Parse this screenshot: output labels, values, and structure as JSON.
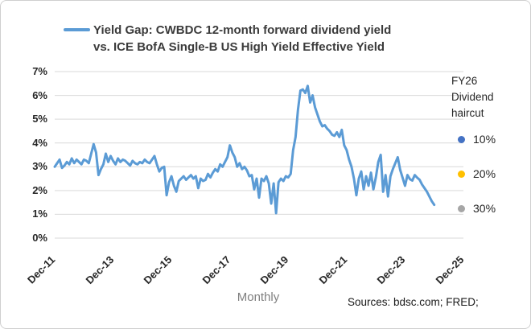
{
  "header": {
    "series_marker_color": "#5B9BD5",
    "title_line1": "Yield Gap: CWBDC 12-month forward dividend yield",
    "title_line2": "vs. ICE BofA Single-B US High Yield Effective Yield"
  },
  "side_legend": {
    "title_lines": [
      "FY26",
      "Dividend",
      "haircut"
    ],
    "items": [
      {
        "label": "10%",
        "color": "#4472C4"
      },
      {
        "label": "20%",
        "color": "#FFC000"
      },
      {
        "label": "30%",
        "color": "#A6A6A6"
      }
    ]
  },
  "footer": {
    "xlabel": "Monthly",
    "source": "Sources: bdsc.com; FRED;"
  },
  "chart_data": {
    "type": "line",
    "title": "Yield Gap: CWBDC 12-month forward dividend yield vs. ICE BofA Single-B US High Yield Effective Yield",
    "xlabel": "Monthly",
    "ylabel": "",
    "unit": "%",
    "ylim": [
      0,
      7
    ],
    "y_tick_step": 1,
    "y_tick_labels": [
      "0%",
      "1%",
      "2%",
      "3%",
      "4%",
      "5%",
      "6%",
      "7%"
    ],
    "x_tick_labels": [
      "Dec-11",
      "Dec-13",
      "Dec-15",
      "Dec-17",
      "Dec-19",
      "Dec-21",
      "Dec-23",
      "Dec-25"
    ],
    "x_axis_total_months": 168,
    "grid": true,
    "gridline_color": "#d9d9d9",
    "legend_position": "top",
    "series": [
      {
        "name": "Yield Gap: CWBDC 12-month forward dividend yield vs. ICE BofA Single-B US High Yield Effective Yield",
        "color": "#5B9BD5",
        "x_start": "Dec-11",
        "x_end": "Dec-24",
        "frequency": "monthly",
        "values": [
          3.0,
          3.15,
          3.3,
          2.95,
          3.05,
          3.2,
          3.1,
          3.35,
          3.15,
          3.3,
          3.2,
          3.1,
          3.3,
          3.25,
          3.15,
          3.55,
          3.95,
          3.6,
          2.65,
          2.9,
          3.1,
          3.55,
          3.2,
          3.45,
          3.25,
          3.1,
          3.35,
          3.2,
          3.3,
          3.25,
          3.15,
          3.05,
          3.25,
          3.15,
          3.1,
          3.2,
          3.15,
          3.3,
          3.2,
          3.15,
          3.3,
          3.45,
          3.1,
          2.8,
          2.95,
          3.0,
          1.8,
          2.35,
          2.6,
          2.2,
          1.95,
          2.4,
          2.5,
          2.6,
          2.45,
          2.55,
          2.65,
          2.5,
          2.6,
          2.1,
          2.5,
          2.4,
          2.45,
          2.7,
          2.55,
          2.75,
          2.9,
          2.8,
          3.1,
          3.0,
          3.2,
          3.4,
          3.9,
          3.6,
          3.4,
          3.0,
          3.15,
          2.9,
          3.0,
          2.85,
          2.6,
          2.65,
          2.05,
          2.5,
          1.7,
          2.5,
          2.4,
          2.6,
          2.3,
          1.45,
          2.3,
          1.05,
          2.35,
          2.5,
          2.4,
          2.6,
          2.55,
          2.7,
          3.7,
          4.25,
          5.4,
          6.2,
          6.25,
          6.1,
          6.4,
          5.7,
          6.0,
          5.5,
          5.2,
          4.9,
          4.7,
          4.75,
          4.6,
          4.5,
          4.35,
          4.3,
          4.45,
          4.25,
          4.55,
          3.9,
          3.7,
          3.3,
          3.0,
          2.5,
          1.8,
          2.5,
          2.8,
          2.05,
          2.6,
          2.2,
          2.75,
          2.05,
          2.55,
          3.2,
          3.5,
          1.95,
          2.65,
          1.75,
          2.6,
          2.9,
          3.15,
          3.4,
          2.87,
          2.54,
          2.2,
          2.65,
          2.48,
          2.42,
          2.65,
          2.54,
          2.45,
          2.25,
          2.1,
          1.95,
          1.75,
          1.55,
          1.4
        ]
      }
    ]
  }
}
